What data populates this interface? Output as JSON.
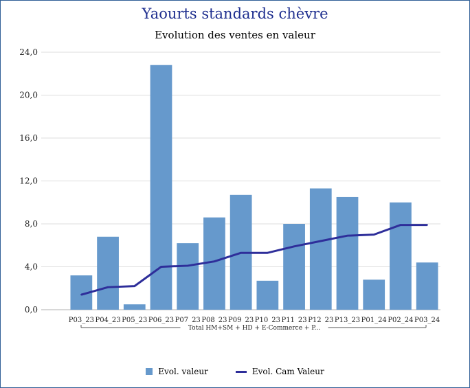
{
  "chart_data": {
    "type": "bar",
    "title": "Yaourts standards chèvre",
    "subtitle": "Evolution des ventes en valeur",
    "categories": [
      "P03_23",
      "P04_23",
      "P05_23",
      "P06_23",
      "P07_23",
      "P08_23",
      "P09_23",
      "P10_23",
      "P11_23",
      "P12_23",
      "P13_23",
      "P01_24",
      "P02_24",
      "P03_24"
    ],
    "group_label": "Total HM+SM + HD + E-Commerce + P...",
    "series": [
      {
        "name": "Evol.  valeur",
        "kind": "bar",
        "color": "#6699cc",
        "values": [
          3.2,
          6.8,
          0.5,
          22.8,
          6.2,
          8.6,
          10.7,
          2.7,
          8.0,
          11.3,
          10.5,
          2.8,
          10.0,
          4.4
        ]
      },
      {
        "name": "Evol. Cam Valeur",
        "kind": "line",
        "color": "#2e2e9a",
        "values": [
          1.4,
          2.1,
          2.2,
          4.0,
          4.1,
          4.5,
          5.3,
          5.3,
          5.9,
          6.4,
          6.9,
          7.0,
          7.9,
          7.9
        ]
      }
    ],
    "ylim": [
      0,
      24
    ],
    "yticks": [
      "0,0",
      "4,0",
      "8,0",
      "12,0",
      "16,0",
      "20,0",
      "24,0"
    ],
    "ytick_values": [
      0,
      4,
      8,
      12,
      16,
      20,
      24
    ],
    "grid": true,
    "legend_position": "bottom"
  }
}
